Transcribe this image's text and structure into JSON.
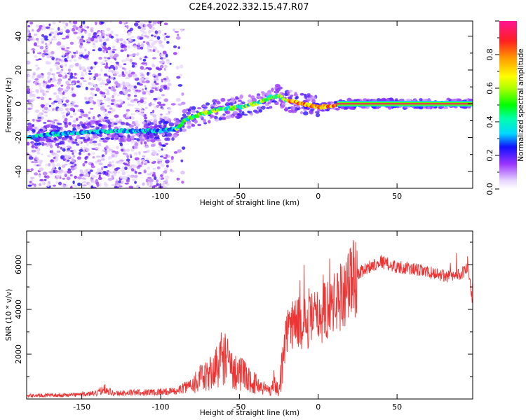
{
  "title": "C2E4.2022.332.15.47.R07",
  "chart_data": [
    {
      "type": "heatmap",
      "xlabel": "Height of straight line (km)",
      "ylabel": "Frequency (Hz)",
      "xlim": [
        -185,
        98
      ],
      "ylim": [
        -50,
        49
      ],
      "xticks": [
        -150,
        -100,
        -50,
        0,
        50
      ],
      "yticks": [
        -40,
        -20,
        0,
        20,
        40
      ],
      "grid": false,
      "colorbar": {
        "label": "Normalized spectral amplitude",
        "range": [
          0,
          1
        ],
        "ticks": [
          0.0,
          0.2,
          0.4,
          0.6,
          0.8
        ],
        "tick_labels": [
          "0.0",
          "0.2",
          "0.4",
          "0.6",
          "0.8"
        ]
      },
      "ridge": {
        "x": [
          -185,
          -170,
          -150,
          -130,
          -110,
          -100,
          -90,
          -85,
          -80,
          -70,
          -60,
          -50,
          -40,
          -35,
          -30,
          -25,
          -20,
          -15,
          -10,
          0,
          10,
          20,
          50,
          98
        ],
        "frequency": [
          -20,
          -18,
          -17,
          -16,
          -16,
          -16,
          -15,
          -10,
          -8,
          -5,
          -3,
          -2,
          0,
          2,
          4,
          5,
          2,
          1,
          0,
          -2,
          -1,
          0,
          0,
          0
        ]
      }
    },
    {
      "type": "line",
      "xlabel": "Height of straight line (km)",
      "ylabel": "SNR (10 * v/v)",
      "xlim": [
        -185,
        98
      ],
      "ylim": [
        0,
        7500
      ],
      "xticks": [
        -150,
        -100,
        -50,
        0,
        50
      ],
      "yticks": [
        2000,
        4000,
        6000
      ],
      "grid": false,
      "color": "#ee3333",
      "series": [
        {
          "x": [
            -185,
            -160,
            -140,
            -136,
            -130,
            -110,
            -90,
            -85,
            -80,
            -75,
            -70,
            -65,
            -60,
            -55,
            -50,
            -45,
            -40,
            -35,
            -30,
            -28,
            -25,
            -22,
            -20,
            -15,
            -10,
            -5,
            0,
            5,
            10,
            15,
            20,
            25,
            30,
            35,
            40,
            45,
            50,
            60,
            70,
            75,
            80,
            85,
            90,
            95,
            98
          ],
          "values": [
            150,
            180,
            250,
            500,
            250,
            300,
            350,
            500,
            700,
            900,
            1000,
            1400,
            2000,
            1300,
            1200,
            900,
            700,
            500,
            400,
            800,
            300,
            2000,
            3000,
            3500,
            3300,
            3500,
            3700,
            4000,
            4300,
            4700,
            5200,
            5600,
            5800,
            6000,
            6150,
            6000,
            5900,
            5800,
            5650,
            5600,
            5500,
            5450,
            5600,
            5800,
            4300
          ]
        }
      ]
    }
  ]
}
